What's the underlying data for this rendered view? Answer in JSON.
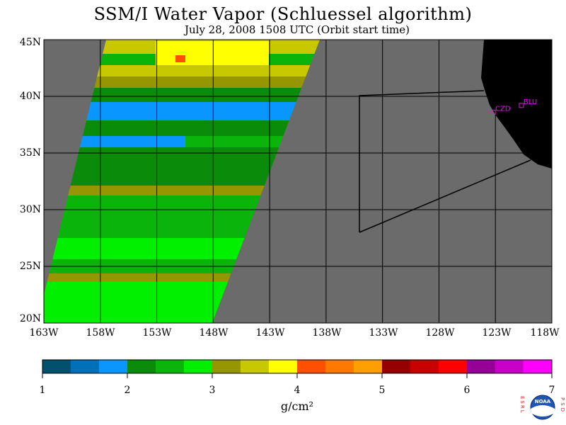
{
  "title": "SSM/I Water Vapor (Schluessel algorithm)",
  "subtitle": "July 28, 2008   1508 UTC   (Orbit start time)",
  "map": {
    "lat_labels": [
      "45N",
      "40N",
      "35N",
      "30N",
      "25N",
      "20N"
    ],
    "lon_labels": [
      "163W",
      "158W",
      "153W",
      "148W",
      "143W",
      "138W",
      "133W",
      "128W",
      "123W",
      "118W"
    ],
    "lat_range": [
      20,
      45
    ],
    "lon_range": [
      -163,
      -118
    ],
    "background_color": "#6b6b6b",
    "land_color": "#000000",
    "stations": [
      {
        "code": "CZD",
        "lat": 38.6,
        "lon": -123.2
      },
      {
        "code": "BLU",
        "lat": 39.2,
        "lon": -120.7
      }
    ],
    "station_color": "#ff00ff"
  },
  "colorbar": {
    "tick_labels": [
      "1",
      "2",
      "3",
      "4",
      "5",
      "6",
      "7"
    ],
    "colors": [
      "#00506e",
      "#0070b8",
      "#0a96ff",
      "#0a8c0a",
      "#0ab40a",
      "#00f000",
      "#969600",
      "#c8c800",
      "#ffff00",
      "#ff5000",
      "#ff7800",
      "#ffa000",
      "#960000",
      "#c80000",
      "#ff0000",
      "#960096",
      "#c800c8",
      "#ff00ff"
    ]
  },
  "units": "g/cm²",
  "logo": {
    "left_letters": "ESRL",
    "right_letters": "PSD",
    "badge": "NOAA"
  }
}
